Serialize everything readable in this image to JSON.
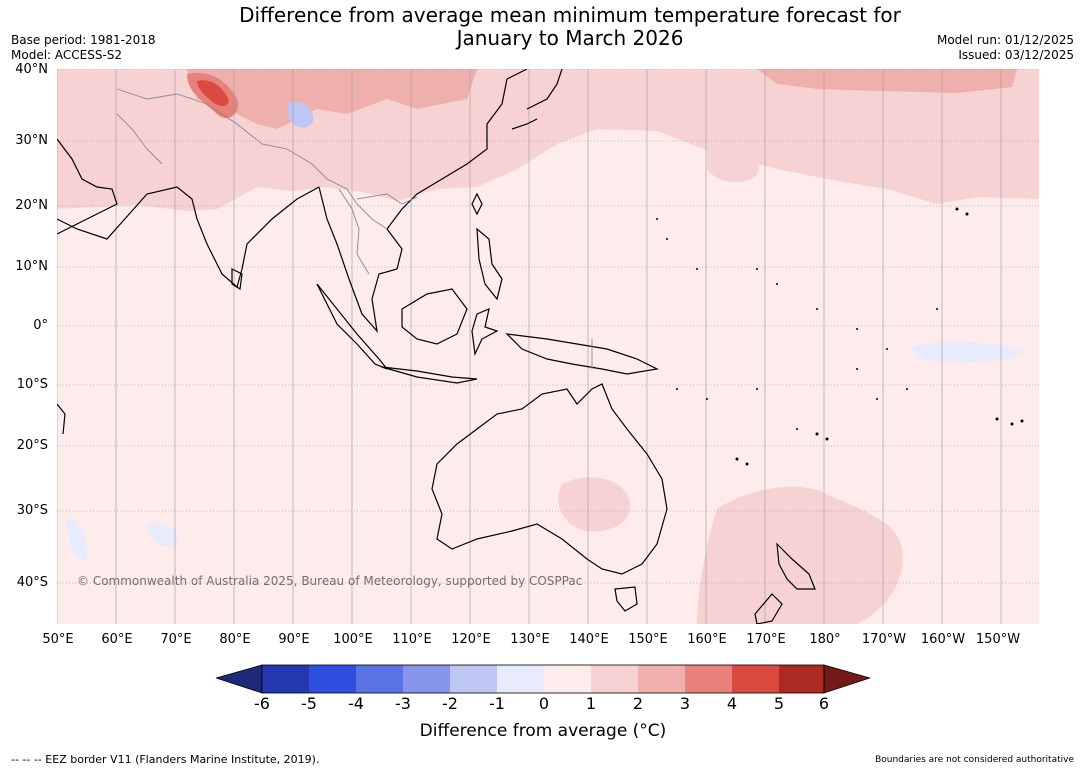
{
  "title_line1": "Difference from average mean minimum temperature forecast for",
  "title_line2": "January to March 2026",
  "base_period": "Base period: 1981-2018",
  "model": "Model: ACCESS-S2",
  "model_run": "Model run: 01/12/2025",
  "issued": "Issued: 03/12/2025",
  "lat_labels": [
    "40°N",
    "30°N",
    "20°N",
    "10°N",
    "0°",
    "10°S",
    "20°S",
    "30°S",
    "40°S"
  ],
  "lon_labels": [
    "50°E",
    "60°E",
    "70°E",
    "80°E",
    "90°E",
    "100°E",
    "110°E",
    "120°E",
    "130°E",
    "140°E",
    "150°E",
    "160°E",
    "170°E",
    "180°",
    "170°W",
    "160°W",
    "150°W"
  ],
  "colorbar": {
    "ticks": [
      "-6",
      "-5",
      "-4",
      "-3",
      "-2",
      "-1",
      "0",
      "1",
      "2",
      "3",
      "4",
      "5",
      "6"
    ],
    "colors": [
      "#1c2a7a",
      "#2638b0",
      "#2f4fdf",
      "#5a73e3",
      "#8796ec",
      "#bec6f4",
      "#e8ebfb",
      "#fdeceb",
      "#f6d3d2",
      "#efb0ad",
      "#e8817c",
      "#db4a3f",
      "#ad2a23",
      "#731b16"
    ],
    "label": "Difference from average (°C)"
  },
  "copyright": "© Commonwealth of Australia 2025, Bureau of Meteorology, supported by COSPPac",
  "footer_left": "--  --  -- EEZ border V11 (Flanders Marine Institute, 2019).",
  "footer_right": "Boundaries are not considered authoritative"
}
